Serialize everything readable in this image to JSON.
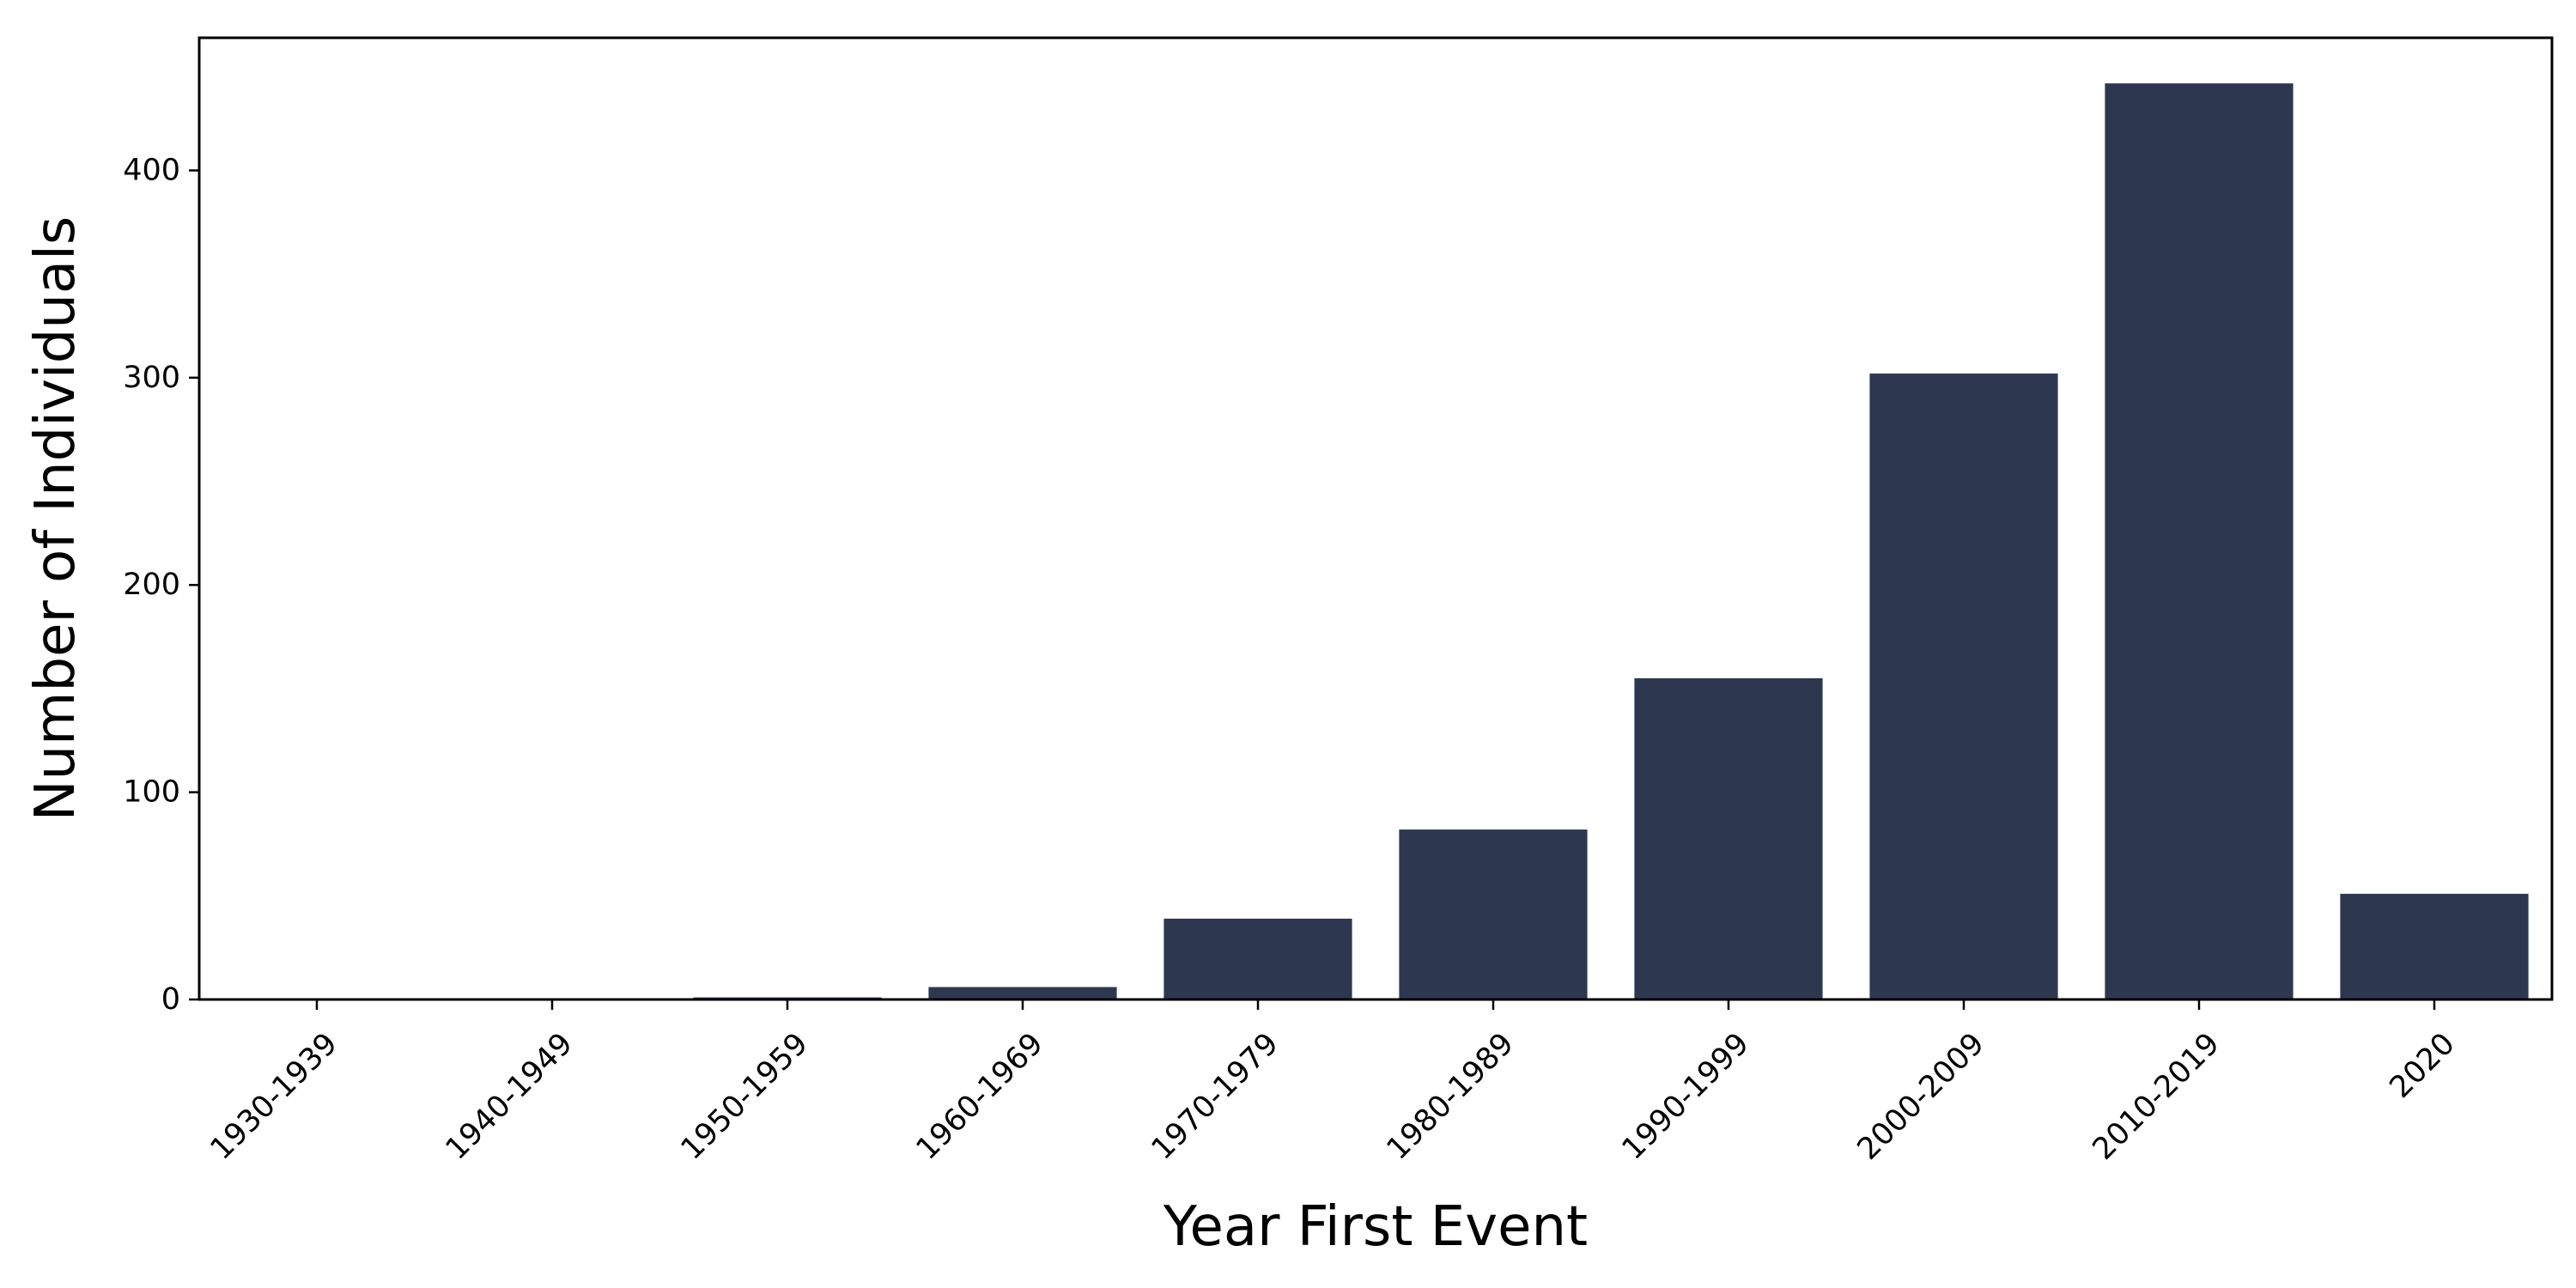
{
  "chart_data": {
    "type": "bar",
    "title": "",
    "xlabel": "Year First Event",
    "ylabel": "Number of Individuals",
    "categories": [
      "1930-1939",
      "1940-1949",
      "1950-1959",
      "1960-1969",
      "1970-1979",
      "1980-1989",
      "1990-1999",
      "2000-2009",
      "2010-2019",
      "2020"
    ],
    "values": [
      0,
      0,
      1,
      6,
      39,
      82,
      155,
      302,
      442,
      51
    ],
    "ylim": [
      0,
      464
    ],
    "yticks": [
      0,
      100,
      200,
      300,
      400
    ],
    "ytick_labels": [
      "0",
      "100",
      "200",
      "300",
      "400"
    ],
    "grid": false,
    "legend": "none",
    "bar_color": "#2d3850"
  }
}
